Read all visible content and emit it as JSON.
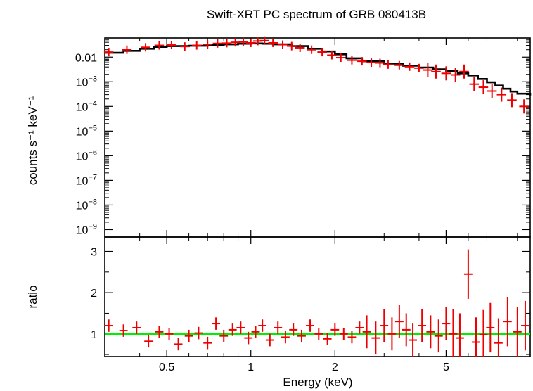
{
  "chart_data": [
    {
      "type": "scatter",
      "panel": "spectrum",
      "title": "Swift-XRT PC spectrum of GRB 080413B",
      "ylabel": "counts s⁻¹ keV⁻¹",
      "xlabel": "Energy (keV)",
      "xscale": "log",
      "yscale": "log",
      "xlim": [
        0.3,
        10
      ],
      "ylim": [
        5e-10,
        0.06
      ],
      "yticks": [
        {
          "value": 0.01,
          "label": "0.01"
        },
        {
          "value": 0.001,
          "base": "10",
          "exp": "−3"
        },
        {
          "value": 0.0001,
          "base": "10",
          "exp": "−4"
        },
        {
          "value": 1e-05,
          "base": "10",
          "exp": "−5"
        },
        {
          "value": 1e-06,
          "base": "10",
          "exp": "−6"
        },
        {
          "value": 1e-07,
          "base": "10",
          "exp": "−7"
        },
        {
          "value": 1e-08,
          "base": "10",
          "exp": "−8"
        },
        {
          "value": 1e-09,
          "base": "10",
          "exp": "−9"
        }
      ],
      "model": {
        "color": "#000000",
        "x": [
          0.3,
          0.35,
          0.4,
          0.45,
          0.5,
          0.6,
          0.7,
          0.8,
          0.9,
          1.0,
          1.1,
          1.2,
          1.4,
          1.6,
          1.8,
          2.0,
          2.2,
          2.5,
          3.0,
          3.5,
          4.0,
          4.5,
          5.0,
          5.5,
          6.0,
          6.5,
          7.0,
          7.5,
          8.0,
          8.5,
          9.0,
          10.0
        ],
        "y": [
          0.015,
          0.018,
          0.022,
          0.026,
          0.028,
          0.029,
          0.031,
          0.033,
          0.035,
          0.036,
          0.035,
          0.033,
          0.028,
          0.022,
          0.017,
          0.013,
          0.009,
          0.0068,
          0.0055,
          0.0045,
          0.0038,
          0.0032,
          0.0027,
          0.0022,
          0.0018,
          0.0013,
          0.00095,
          0.0007,
          0.00052,
          0.0004,
          0.00033,
          0.00028
        ]
      },
      "series": [
        {
          "color": "#ee0000",
          "x": [
            0.31,
            0.36,
            0.42,
            0.47,
            0.52,
            0.58,
            0.64,
            0.7,
            0.76,
            0.82,
            0.88,
            0.94,
            1.0,
            1.06,
            1.12,
            1.2,
            1.3,
            1.4,
            1.5,
            1.65,
            1.8,
            1.95,
            2.1,
            2.3,
            2.5,
            2.7,
            2.9,
            3.1,
            3.4,
            3.7,
            4.0,
            4.3,
            4.6,
            5.0,
            5.4,
            5.8,
            6.3,
            6.8,
            7.3,
            7.9,
            8.6,
            9.5
          ],
          "y": [
            0.016,
            0.02,
            0.025,
            0.03,
            0.031,
            0.027,
            0.03,
            0.033,
            0.036,
            0.037,
            0.04,
            0.041,
            0.038,
            0.045,
            0.047,
            0.038,
            0.032,
            0.028,
            0.024,
            0.02,
            0.016,
            0.012,
            0.0095,
            0.0075,
            0.0068,
            0.006,
            0.0058,
            0.005,
            0.0047,
            0.0041,
            0.0036,
            0.003,
            0.0026,
            0.0022,
            0.0019,
            0.0026,
            0.0008,
            0.0006,
            0.00042,
            0.0003,
            0.00018,
            0.0001
          ]
        }
      ]
    },
    {
      "type": "scatter",
      "panel": "ratio",
      "ylabel": "ratio",
      "xlabel": "Energy (keV)",
      "xscale": "log",
      "xlim": [
        0.3,
        10
      ],
      "ylim": [
        0.45,
        3.35
      ],
      "yticks": [
        {
          "value": 1,
          "label": "1"
        },
        {
          "value": 2,
          "label": "2"
        },
        {
          "value": 3,
          "label": "3"
        }
      ],
      "xticks": [
        {
          "value": 0.5,
          "label": "0.5"
        },
        {
          "value": 1,
          "label": "1"
        },
        {
          "value": 2,
          "label": "2"
        },
        {
          "value": 5,
          "label": "5"
        }
      ],
      "reference_line": {
        "value": 1,
        "color": "#00ee00"
      },
      "series": [
        {
          "color": "#ee0000",
          "x": [
            0.31,
            0.35,
            0.39,
            0.43,
            0.47,
            0.51,
            0.55,
            0.6,
            0.65,
            0.7,
            0.75,
            0.8,
            0.86,
            0.92,
            0.98,
            1.04,
            1.1,
            1.17,
            1.25,
            1.33,
            1.42,
            1.52,
            1.63,
            1.75,
            1.88,
            2.0,
            2.15,
            2.3,
            2.45,
            2.6,
            2.8,
            3.0,
            3.2,
            3.4,
            3.6,
            3.8,
            4.1,
            4.4,
            4.7,
            5.0,
            5.3,
            5.6,
            6.0,
            6.4,
            6.8,
            7.2,
            7.7,
            8.3,
            9.0,
            9.6
          ],
          "y": [
            1.2,
            1.08,
            1.15,
            0.82,
            1.05,
            1.0,
            0.75,
            0.95,
            1.02,
            0.78,
            1.25,
            0.95,
            1.1,
            1.15,
            0.9,
            1.05,
            1.2,
            0.85,
            1.15,
            0.92,
            1.1,
            0.95,
            1.2,
            1.0,
            0.88,
            1.1,
            1.0,
            0.92,
            1.15,
            1.05,
            0.9,
            1.2,
            1.0,
            1.3,
            1.1,
            0.85,
            1.2,
            1.05,
            0.95,
            1.25,
            1.0,
            0.9,
            2.45,
            0.8,
            0.98,
            1.15,
            0.78,
            1.3,
            1.05,
            1.2
          ]
        }
      ]
    }
  ]
}
